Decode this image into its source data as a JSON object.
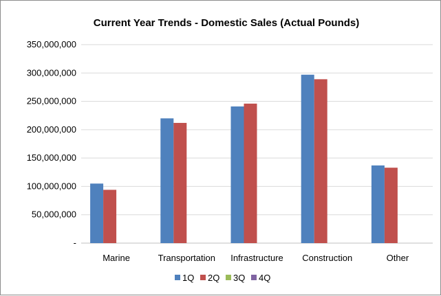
{
  "chart_data": {
    "type": "bar",
    "title": "Current Year Trends - Domestic Sales   (Actual Pounds)",
    "xlabel": "",
    "ylabel": "",
    "categories": [
      "Marine",
      "Transportation",
      "Infrastructure",
      "Construction",
      "Other"
    ],
    "series": [
      {
        "name": "1Q",
        "color": "#4F81BD",
        "values": [
          105000000,
          220000000,
          241000000,
          297000000,
          137000000
        ]
      },
      {
        "name": "2Q",
        "color": "#C0504D",
        "values": [
          94000000,
          212000000,
          246000000,
          289000000,
          133000000
        ]
      },
      {
        "name": "3Q",
        "color": "#9BBB59",
        "values": [
          null,
          null,
          null,
          null,
          null
        ]
      },
      {
        "name": "4Q",
        "color": "#8064A2",
        "values": [
          null,
          null,
          null,
          null,
          null
        ]
      }
    ],
    "ylim": [
      0,
      350000000
    ],
    "ytick_labels": [
      "-",
      "50,000,000",
      "100,000,000",
      "150,000,000",
      "200,000,000",
      "250,000,000",
      "300,000,000",
      "350,000,000"
    ],
    "grid": true,
    "legend_position": "bottom"
  }
}
